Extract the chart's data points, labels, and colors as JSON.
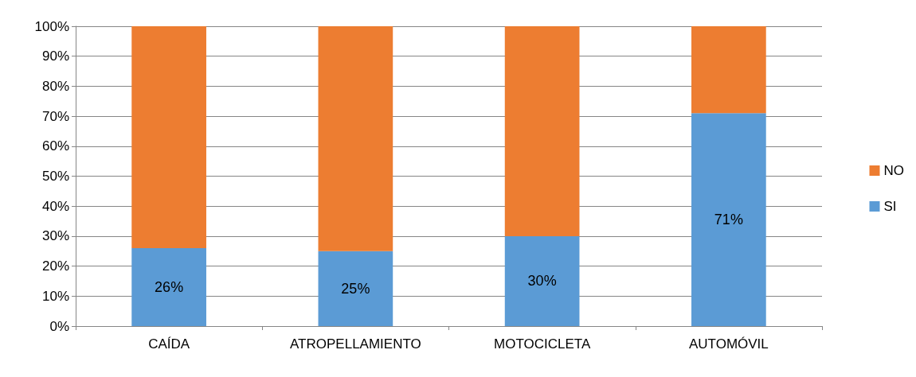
{
  "chart_data": {
    "type": "bar",
    "stacked": true,
    "categories": [
      "CAÍDA",
      "ATROPELLAMIENTO",
      "MOTOCICLETA",
      "AUTOMÓVIL"
    ],
    "series": [
      {
        "name": "SI",
        "color": "#5b9bd5",
        "values": [
          26,
          25,
          30,
          71
        ],
        "value_labels": [
          "26%",
          "25%",
          "30%",
          "71%"
        ]
      },
      {
        "name": "NO",
        "color": "#ed7d31",
        "values": [
          74,
          75,
          70,
          29
        ]
      }
    ],
    "ylim": [
      0,
      100
    ],
    "yticks": [
      {
        "value": 0,
        "label": "0%"
      },
      {
        "value": 10,
        "label": "10%"
      },
      {
        "value": 20,
        "label": "20%"
      },
      {
        "value": 30,
        "label": "30%"
      },
      {
        "value": 40,
        "label": "40%"
      },
      {
        "value": 50,
        "label": "50%"
      },
      {
        "value": 60,
        "label": "60%"
      },
      {
        "value": 70,
        "label": "70%"
      },
      {
        "value": 80,
        "label": "80%"
      },
      {
        "value": 90,
        "label": "90%"
      },
      {
        "value": 100,
        "label": "100%"
      }
    ],
    "grid": "y",
    "legend": "right"
  }
}
